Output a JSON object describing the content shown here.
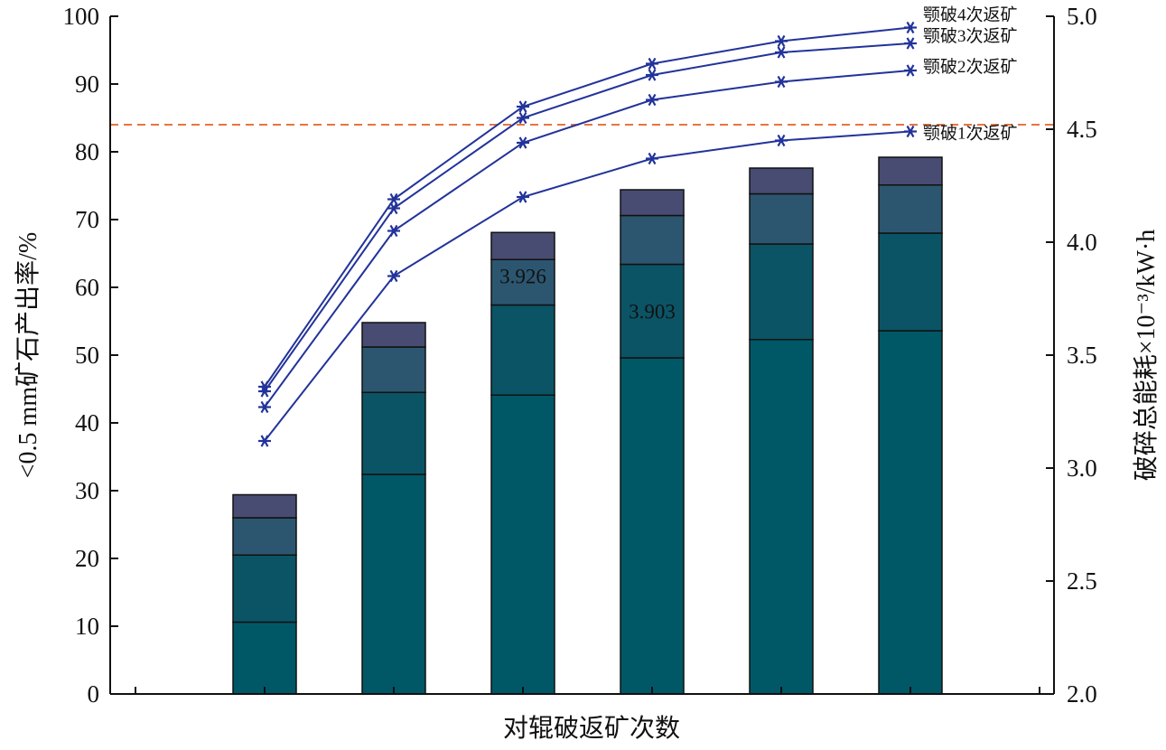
{
  "chart_data": {
    "type": "bar",
    "xlabel": "对辊破返矿次数",
    "ylabel": "<0.5 mm矿石产出率/%",
    "y2label": "破碎总能耗×10⁻³/kW·h",
    "ylim": [
      0,
      100
    ],
    "y2lim": [
      2.0,
      5.0
    ],
    "yticks": [
      "0",
      "10",
      "20",
      "30",
      "40",
      "50",
      "60",
      "70",
      "80",
      "90",
      "100"
    ],
    "y2ticks": [
      "2.0",
      "2.5",
      "3.0",
      "3.5",
      "4.0",
      "4.5",
      "5.0"
    ],
    "bar_segments": [
      [
        10.6,
        20.5,
        26.0,
        29.4
      ],
      [
        32.4,
        44.5,
        51.2,
        54.8
      ],
      [
        44.1,
        57.4,
        64.1,
        68.1
      ],
      [
        49.6,
        63.4,
        70.6,
        74.4
      ],
      [
        52.3,
        66.4,
        73.8,
        77.6
      ],
      [
        53.6,
        68.0,
        75.1,
        79.2
      ]
    ],
    "bar_colors": [
      "#005866",
      "#0b5466",
      "#2c5670",
      "#484c72"
    ],
    "line_color": "#22339a",
    "reference_line": {
      "value": 4.52,
      "axis": "y2",
      "color": "#e8743f",
      "style": "dashed"
    },
    "series": [
      {
        "name": "颚破1次返矿",
        "values": [
          3.12,
          3.85,
          4.2,
          4.37,
          4.45,
          4.49
        ]
      },
      {
        "name": "颚破2次返矿",
        "values": [
          3.27,
          4.05,
          4.44,
          4.63,
          4.71,
          4.76
        ]
      },
      {
        "name": "颚破3次返矿",
        "values": [
          3.34,
          4.15,
          4.55,
          4.74,
          4.84,
          4.88
        ]
      },
      {
        "name": "颚破4次返矿",
        "values": [
          3.36,
          4.19,
          4.6,
          4.79,
          4.89,
          4.95
        ]
      }
    ],
    "data_labels": [
      {
        "bar": 2,
        "text": "3.926",
        "y": 60.6
      },
      {
        "bar": 3,
        "text": "3.903",
        "y": 55.4
      }
    ]
  }
}
